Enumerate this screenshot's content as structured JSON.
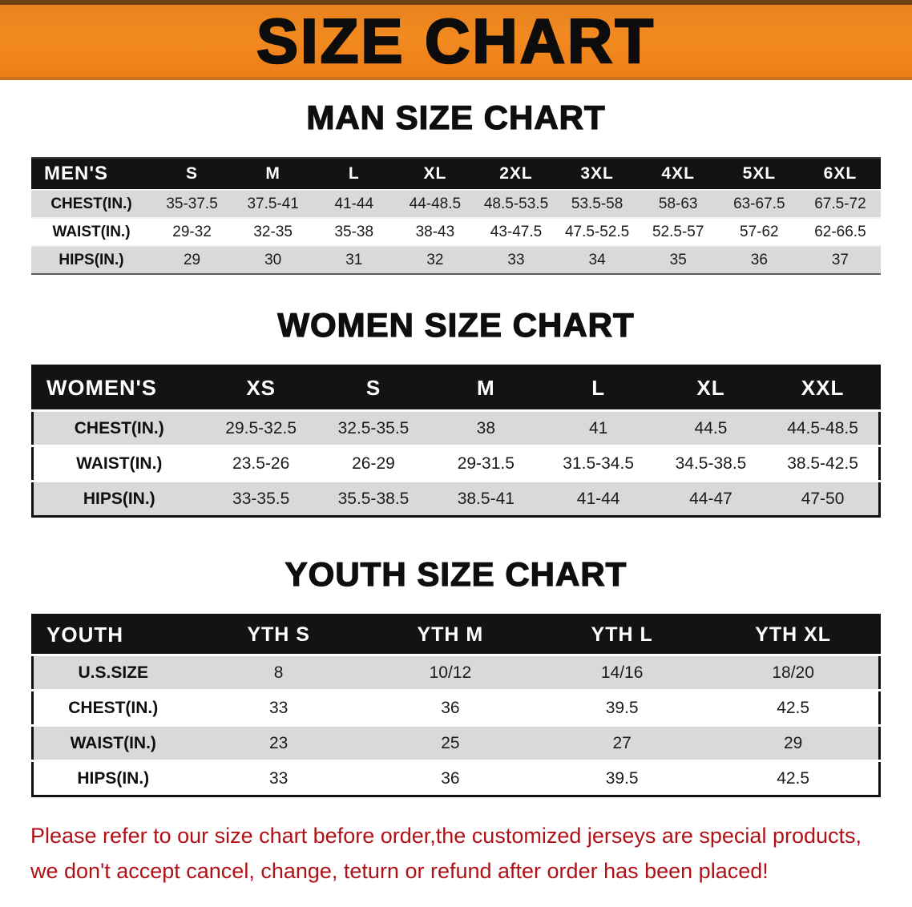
{
  "banner": {
    "title": "SIZE CHART"
  },
  "sections": [
    {
      "heading": "MAN SIZE CHART",
      "table": {
        "header": [
          "MEN'S",
          "S",
          "M",
          "L",
          "XL",
          "2XL",
          "3XL",
          "4XL",
          "5XL",
          "6XL"
        ],
        "rows": [
          {
            "label": "CHEST(IN.)",
            "values": [
              "35-37.5",
              "37.5-41",
              "41-44",
              "44-48.5",
              "48.5-53.5",
              "53.5-58",
              "58-63",
              "63-67.5",
              "67.5-72"
            ]
          },
          {
            "label": "WAIST(IN.)",
            "values": [
              "29-32",
              "32-35",
              "35-38",
              "38-43",
              "43-47.5",
              "47.5-52.5",
              "52.5-57",
              "57-62",
              "62-66.5"
            ]
          },
          {
            "label": "HIPS(IN.)",
            "values": [
              "29",
              "30",
              "31",
              "32",
              "33",
              "34",
              "35",
              "36",
              "37"
            ]
          }
        ]
      }
    },
    {
      "heading": "WOMEN SIZE CHART",
      "table": {
        "header": [
          "WOMEN'S",
          "XS",
          "S",
          "M",
          "L",
          "XL",
          "XXL"
        ],
        "rows": [
          {
            "label": "CHEST(IN.)",
            "values": [
              "29.5-32.5",
              "32.5-35.5",
              "38",
              "41",
              "44.5",
              "44.5-48.5"
            ]
          },
          {
            "label": "WAIST(IN.)",
            "values": [
              "23.5-26",
              "26-29",
              "29-31.5",
              "31.5-34.5",
              "34.5-38.5",
              "38.5-42.5"
            ]
          },
          {
            "label": "HIPS(IN.)",
            "values": [
              "33-35.5",
              "35.5-38.5",
              "38.5-41",
              "41-44",
              "44-47",
              "47-50"
            ]
          }
        ]
      }
    },
    {
      "heading": "YOUTH SIZE CHART",
      "table": {
        "header": [
          "YOUTH",
          "YTH S",
          "YTH M",
          "YTH L",
          "YTH XL"
        ],
        "rows": [
          {
            "label": "U.S.SIZE",
            "values": [
              "8",
              "10/12",
              "14/16",
              "18/20"
            ]
          },
          {
            "label": "CHEST(IN.)",
            "values": [
              "33",
              "36",
              "39.5",
              "42.5"
            ]
          },
          {
            "label": "WAIST(IN.)",
            "values": [
              "23",
              "25",
              "27",
              "29"
            ]
          },
          {
            "label": "HIPS(IN.)",
            "values": [
              "33",
              "36",
              "39.5",
              "42.5"
            ]
          }
        ]
      }
    }
  ],
  "footer": {
    "line1": "Please refer to our size chart before order,the customized jerseys are special products,",
    "line2": "we don't accept cancel, change, teturn or refund after order has been placed!"
  },
  "colors": {
    "banner_orange": "#f28a20",
    "banner_edge_brown": "#6f4016",
    "table_header_black": "#131313",
    "row_gray": "#d9d9d9",
    "note_red": "#b01116"
  }
}
